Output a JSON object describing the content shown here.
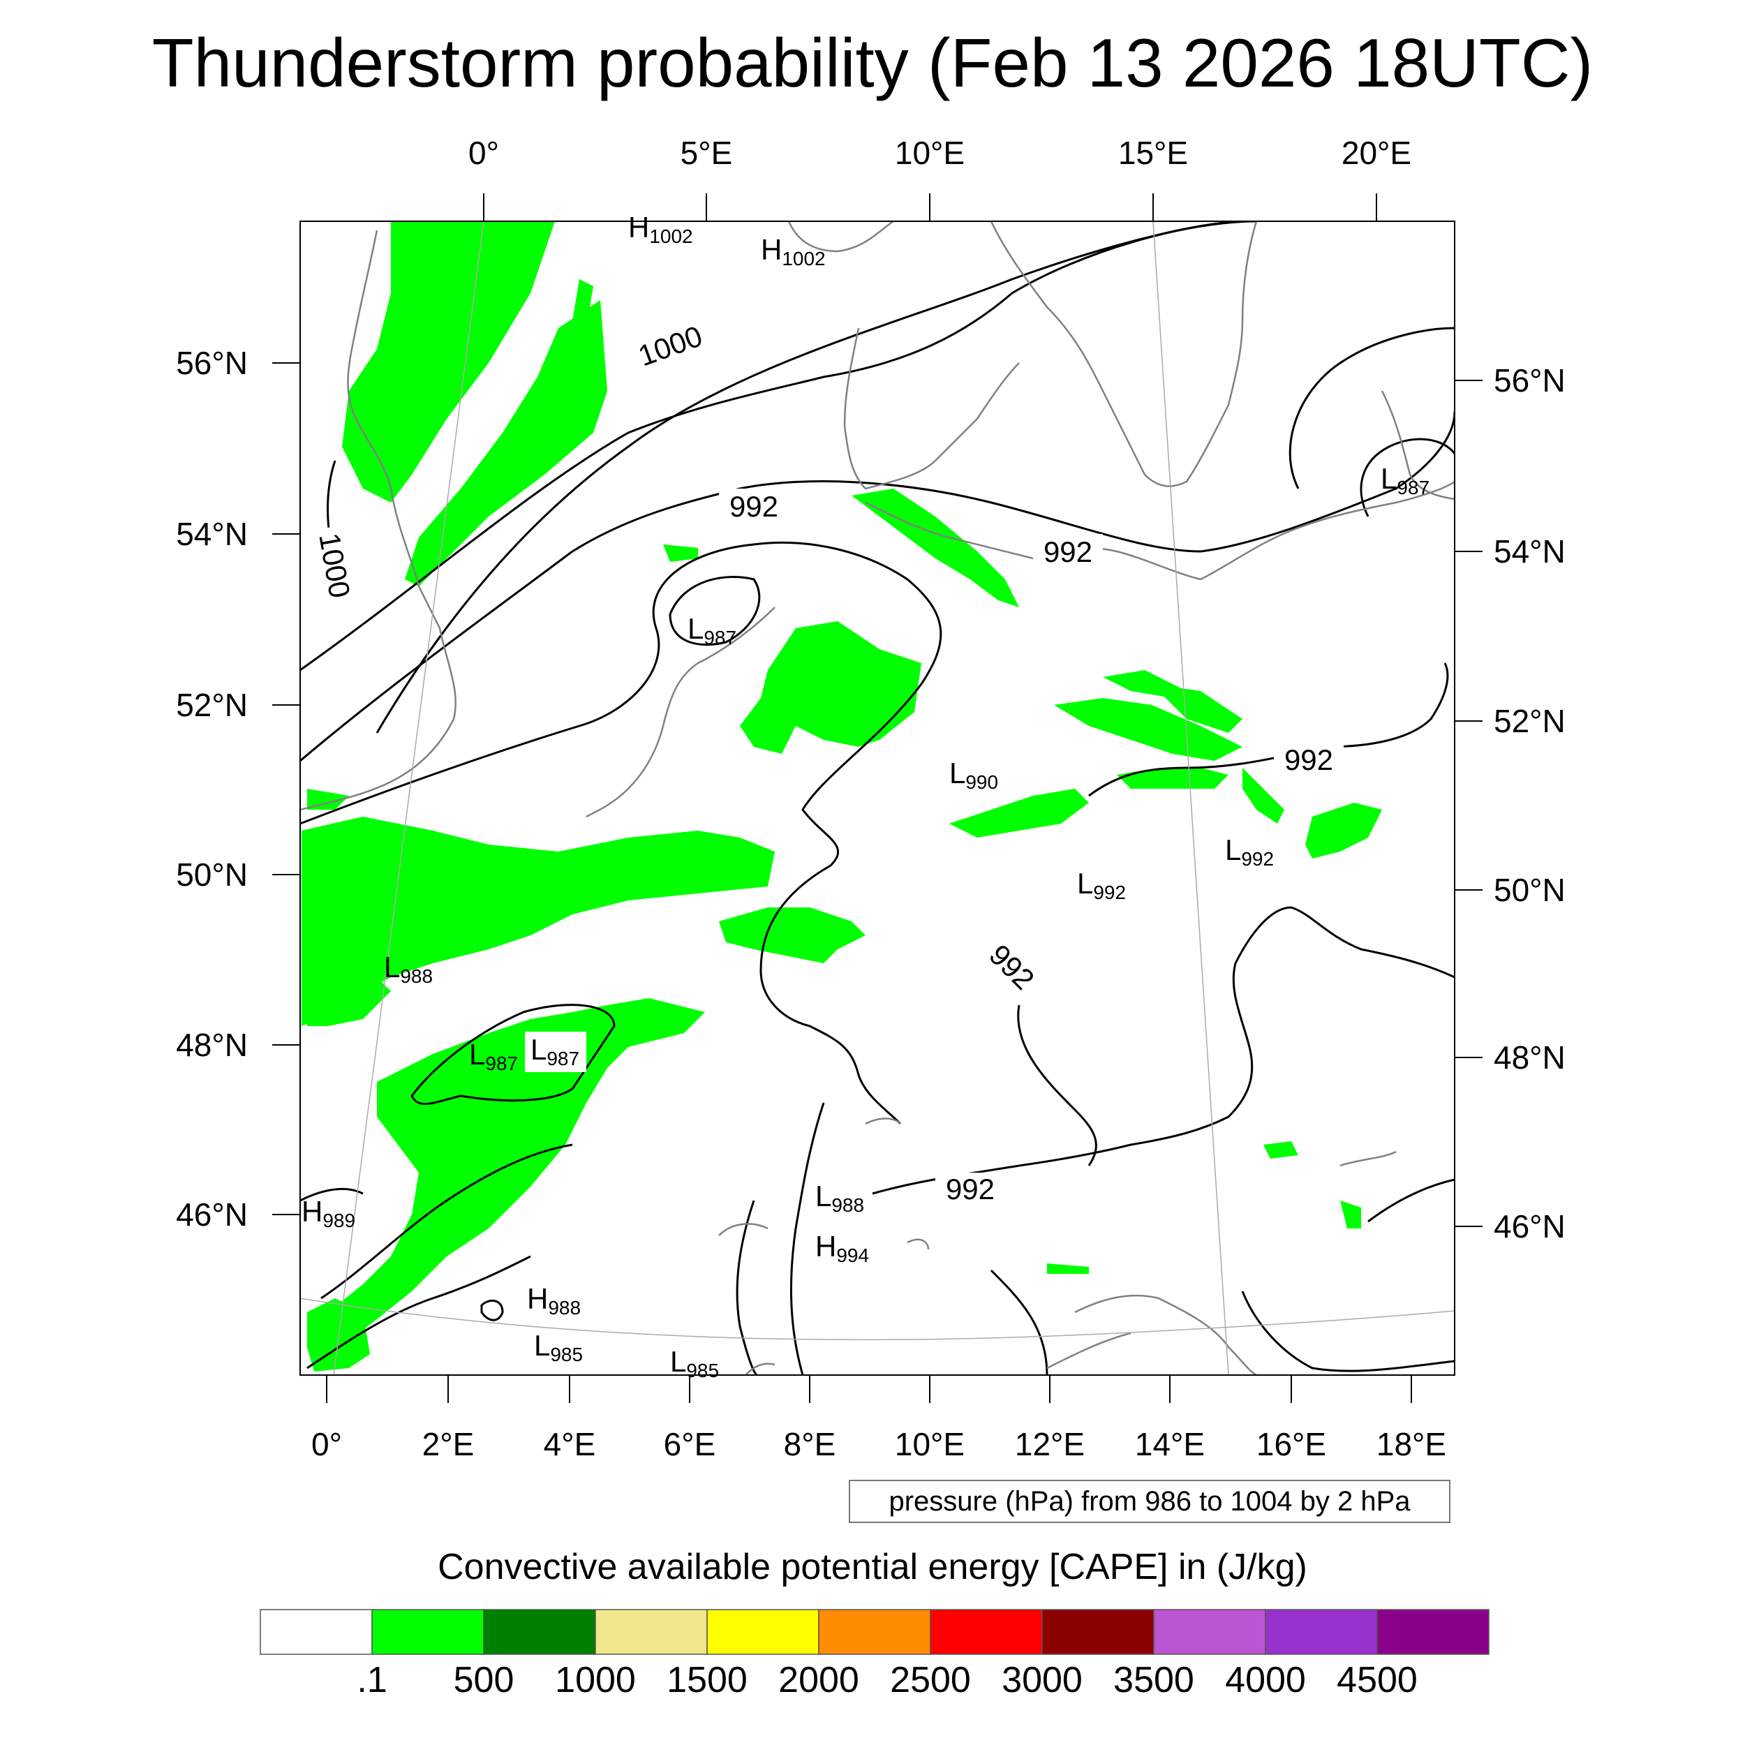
{
  "title": "Thunderstorm probability (Feb 13 2026 18UTC)",
  "top_axis_labels": [
    "0°",
    "5°E",
    "10°E",
    "15°E",
    "20°E"
  ],
  "bottom_axis_labels": [
    "0°",
    "2°E",
    "4°E",
    "6°E",
    "8°E",
    "10°E",
    "12°E",
    "14°E",
    "16°E",
    "18°E"
  ],
  "left_axis_labels": [
    "56°N",
    "54°N",
    "52°N",
    "50°N",
    "48°N",
    "46°N"
  ],
  "right_axis_labels": [
    "56°N",
    "54°N",
    "52°N",
    "50°N",
    "48°N",
    "46°N"
  ],
  "contour_labels": [
    "1000",
    "1000",
    "992",
    "992",
    "992",
    "992",
    "992"
  ],
  "pressure_centers": [
    {
      "type": "H",
      "value": "1002"
    },
    {
      "type": "H",
      "value": "1002"
    },
    {
      "type": "L",
      "value": "987"
    },
    {
      "type": "L",
      "value": "987"
    },
    {
      "type": "L",
      "value": "990"
    },
    {
      "type": "L",
      "value": "992"
    },
    {
      "type": "L",
      "value": "992"
    },
    {
      "type": "L",
      "value": "988"
    },
    {
      "type": "L",
      "value": "987"
    },
    {
      "type": "L",
      "value": "987"
    },
    {
      "type": "H",
      "value": "989"
    },
    {
      "type": "L",
      "value": "988"
    },
    {
      "type": "H",
      "value": "994"
    },
    {
      "type": "H",
      "value": "988"
    },
    {
      "type": "L",
      "value": "985"
    },
    {
      "type": "L",
      "value": "985"
    }
  ],
  "contour_note": "pressure (hPa) from 986 to 1004 by 2 hPa",
  "legend": {
    "title": "Convective available potential energy [CAPE] in (J/kg)",
    "labels": [
      ".1",
      "500",
      "1000",
      "1500",
      "2000",
      "2500",
      "3000",
      "3500",
      "4000",
      "4500"
    ],
    "colors": [
      "#ffffff",
      "#00ff00",
      "#008000",
      "#f0e68c",
      "#ffff00",
      "#ff8c00",
      "#ff0000",
      "#8b0000",
      "#ba55d3",
      "#9932cc",
      "#8b008b"
    ]
  },
  "cape_color": "#00ff00"
}
